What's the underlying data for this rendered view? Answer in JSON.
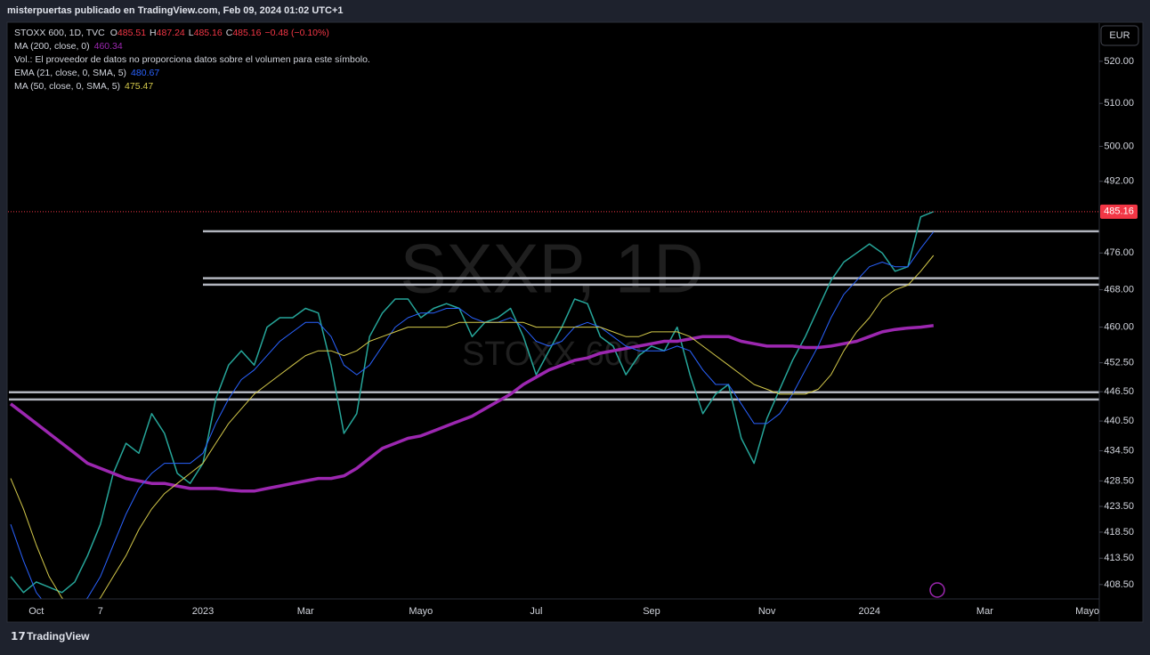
{
  "header": {
    "title": "misterpuertas publicado en TradingView.com, Feb 09, 2024 01:02 UTC+1"
  },
  "legend": {
    "symbol": "STOXX 600, 1D, TVC",
    "ohlc": [
      {
        "label": "O",
        "value": "485.51"
      },
      {
        "label": "H",
        "value": "487.24"
      },
      {
        "label": "L",
        "value": "485.16"
      },
      {
        "label": "C",
        "value": "485.16"
      }
    ],
    "change": "−0.48 (−0.10%)",
    "volume_note": "Vol.: El proveedor de datos no proporciona datos sobre el volumen para este símbolo."
  },
  "watermark": {
    "symbol": "SXXP, 1D",
    "name": "STOXX 600"
  },
  "currency_button": "EUR",
  "footer": {
    "brand": "TradingView"
  },
  "chart_data": {
    "type": "line",
    "log_scale": true,
    "categories": [
      null,
      null,
      "Oct",
      null,
      null,
      null,
      null,
      "7",
      null,
      null,
      null,
      null,
      null,
      null,
      null,
      "2023",
      null,
      null,
      null,
      null,
      null,
      null,
      null,
      "Mar",
      null,
      null,
      null,
      null,
      null,
      null,
      null,
      null,
      "Mayo",
      null,
      null,
      null,
      null,
      null,
      null,
      null,
      null,
      "Jul",
      null,
      null,
      null,
      null,
      null,
      null,
      null,
      null,
      "Sep",
      null,
      null,
      null,
      null,
      null,
      null,
      null,
      null,
      "Nov",
      null,
      null,
      null,
      null,
      null,
      null,
      null,
      "2024",
      null,
      null,
      null,
      null,
      null,
      null,
      null,
      null,
      "Mar",
      null,
      null,
      null,
      null,
      null,
      null,
      null,
      "Mayo"
    ],
    "series": [
      {
        "name": "STOXX 600, 1D, TVC",
        "color": "#26a69a",
        "width": 1.5,
        "values": [
          410,
          407,
          409,
          408,
          407,
          409,
          414,
          420,
          430,
          436,
          434,
          442,
          438,
          430,
          428,
          432,
          445,
          452,
          455,
          452,
          460,
          462,
          462,
          464,
          463,
          452,
          438,
          442,
          458,
          463,
          466,
          466,
          462,
          464,
          465,
          464,
          458,
          461,
          462,
          464,
          458,
          450,
          455,
          460,
          466,
          465,
          458,
          456,
          450,
          454,
          456,
          455,
          460,
          450,
          442,
          446,
          448,
          437,
          432,
          441,
          447,
          453,
          458,
          464,
          470,
          474,
          476,
          478,
          476,
          472,
          473,
          484,
          485.16,
          null,
          null,
          null,
          null,
          null,
          null,
          null,
          null,
          null,
          null,
          null,
          null
        ]
      },
      {
        "name": "MA (200, close, 0)",
        "color": "#9c27b0",
        "width": 3.5,
        "values": [
          444,
          442,
          440,
          438,
          436,
          434,
          432,
          431,
          430,
          429,
          428.5,
          428,
          428,
          427.5,
          427,
          427,
          427,
          426.7,
          426.5,
          426.5,
          427,
          427.5,
          428,
          428.5,
          429,
          429,
          429.5,
          431,
          433,
          435,
          436,
          437,
          437.5,
          438.5,
          439.5,
          440.5,
          441.5,
          443,
          444.5,
          446,
          448,
          449.5,
          451,
          452,
          453,
          453.5,
          454.5,
          455,
          455.5,
          456,
          456.5,
          457,
          457,
          457.5,
          458,
          458,
          458,
          457,
          456.5,
          456,
          456,
          456,
          455.7,
          455.7,
          456,
          456.5,
          457,
          458,
          459,
          459.5,
          459.8,
          460,
          460.34,
          null,
          null,
          null,
          null,
          null,
          null,
          null,
          null,
          null,
          null,
          null,
          null
        ]
      },
      {
        "name": "EMA (21, close, 0, SMA, 5)",
        "color": "#2962ff",
        "width": 1,
        "values": [
          420,
          413,
          407,
          404,
          403,
          404,
          406,
          410,
          416,
          422,
          427,
          430,
          432,
          432,
          432,
          434,
          440,
          445,
          449,
          451,
          454,
          457,
          459,
          461,
          461,
          458,
          452,
          450,
          452,
          456,
          460,
          462,
          463,
          463,
          464,
          464,
          462,
          461,
          461,
          462,
          460,
          457,
          456,
          457,
          460,
          461,
          460,
          458,
          456,
          455,
          455,
          455,
          456,
          455,
          451,
          448,
          448,
          444,
          440,
          440,
          442,
          446,
          451,
          456,
          462,
          467,
          470,
          473,
          474,
          473,
          473,
          477,
          480.67,
          null,
          null,
          null,
          null,
          null,
          null,
          null,
          null,
          null,
          null,
          null,
          null
        ]
      },
      {
        "name": "MA (50, close, 0, SMA, 5)",
        "color": "#d4c94a",
        "width": 1,
        "values": [
          429,
          423,
          416,
          410,
          406,
          404,
          404,
          406,
          410,
          414,
          419,
          423,
          426,
          428,
          430,
          432,
          436,
          440,
          443,
          446,
          448,
          450,
          452,
          454,
          455,
          455,
          454,
          455,
          457,
          458,
          459,
          460,
          460,
          460,
          460,
          461,
          461,
          461,
          461,
          461,
          461,
          460,
          460,
          460,
          460,
          460,
          460,
          459,
          458,
          458,
          459,
          459,
          459,
          458,
          456,
          454,
          452,
          450,
          448,
          447,
          446,
          446,
          446,
          447,
          450,
          455,
          459,
          462,
          466,
          468,
          469,
          472,
          475.47,
          null,
          null,
          null,
          null,
          null,
          null,
          null,
          null,
          null,
          null,
          null,
          null
        ]
      }
    ],
    "levels": [
      480.8,
      470.5,
      469.1,
      446.4,
      444.9
    ],
    "level_color": "#b2b5be",
    "last_price_color": "#f23645",
    "ylim": [
      405.8,
      528.8
    ],
    "yticks": [
      {
        "value": 408.5,
        "label": "408.50"
      },
      {
        "value": 413.5,
        "label": "413.50"
      },
      {
        "value": 418.5,
        "label": "418.50"
      },
      {
        "value": 423.5,
        "label": "423.50"
      },
      {
        "value": 428.5,
        "label": "428.50"
      },
      {
        "value": 434.5,
        "label": "434.50"
      },
      {
        "value": 440.5,
        "label": "440.50"
      },
      {
        "value": 446.5,
        "label": "446.50"
      },
      {
        "value": 452.5,
        "label": "452.50"
      },
      {
        "value": 460,
        "label": "460.00"
      },
      {
        "value": 468,
        "label": "468.00"
      },
      {
        "value": 476,
        "label": "476.00"
      },
      {
        "value": 492,
        "label": "492.00"
      },
      {
        "value": 500,
        "label": "500.00"
      },
      {
        "value": 510,
        "label": "510.00"
      },
      {
        "value": 520,
        "label": "520.00"
      }
    ],
    "grid": false
  }
}
